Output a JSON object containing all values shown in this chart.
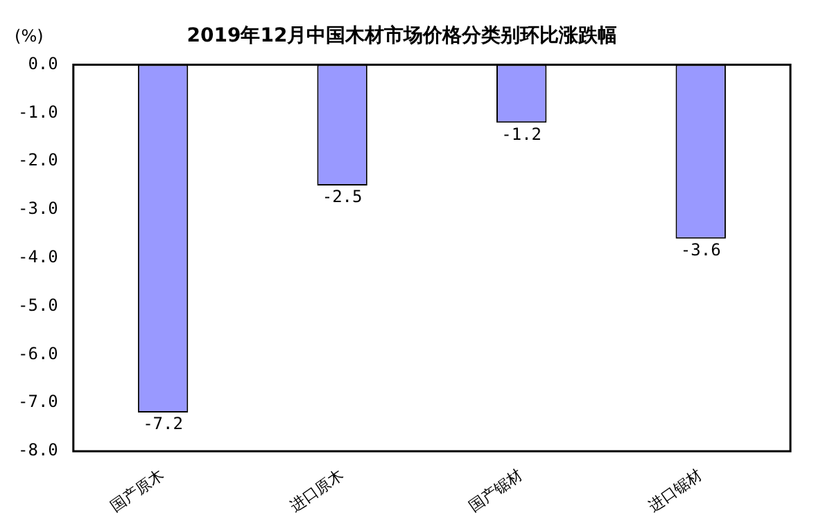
{
  "chart_data": {
    "type": "bar",
    "title": "2019年12月中国木材市场价格分类别环比涨跌幅",
    "ylabel": "(%)",
    "categories": [
      "国产原木",
      "进口原木",
      "国产锯材",
      "进口锯材"
    ],
    "values": [
      -7.2,
      -2.5,
      -1.2,
      -3.6
    ],
    "color": "#9999ff",
    "ylim": [
      -8,
      0
    ],
    "yticks": [
      {
        "value": 0,
        "label": "0.0"
      },
      {
        "value": -1,
        "label": "-1.0"
      },
      {
        "value": -2,
        "label": "-2.0"
      },
      {
        "value": -3,
        "label": "-3.0"
      },
      {
        "value": -4,
        "label": "-4.0"
      },
      {
        "value": -5,
        "label": "-5.0"
      },
      {
        "value": -6,
        "label": "-6.0"
      },
      {
        "value": -7,
        "label": "-7.0"
      },
      {
        "value": -8,
        "label": "-8.0"
      }
    ],
    "data_labels": true,
    "grid": false,
    "legend": false
  }
}
